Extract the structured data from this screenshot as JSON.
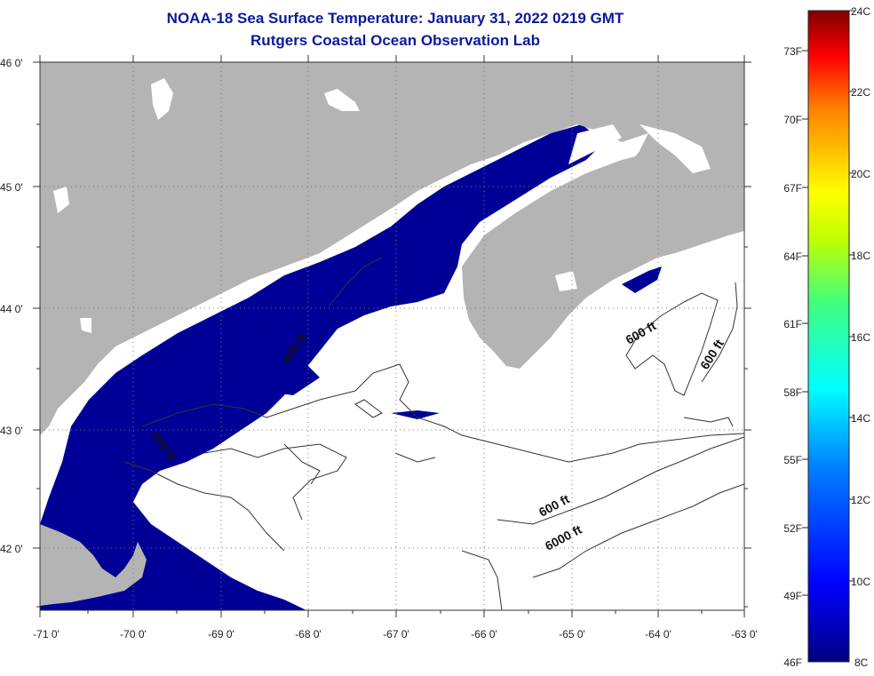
{
  "title_line1": "NOAA-18 Sea Surface Temperature:  January 31, 2022 0219 GMT",
  "title_line2": "Rutgers Coastal Ocean Observation Lab",
  "map": {
    "lat_labels": [
      "46 0'",
      "45 0'",
      "44 0'",
      "43 0'",
      "42 0'"
    ],
    "lon_labels": [
      "-71 0'",
      "-70 0'",
      "-69 0'",
      "-68 0'",
      "-67 0'",
      "-66 0'",
      "-65 0'",
      "-64 0'",
      "-63 0'"
    ],
    "contour_labels": [
      "600 ft",
      "600 ft",
      "600 ft",
      "600 ft",
      "600 ft",
      "6000 ft"
    ]
  },
  "colorbar": {
    "fahrenheit_labels": [
      "73F",
      "70F",
      "67F",
      "64F",
      "61F",
      "58F",
      "55F",
      "52F",
      "49F",
      "46F"
    ],
    "celsius_labels": [
      "24C",
      "22C",
      "20C",
      "18C",
      "16C",
      "14C",
      "12C",
      "10C",
      "8C"
    ]
  },
  "colors": {
    "title": "#0a1a9c",
    "land": "#b4b4b4",
    "cold_water": "#000096",
    "no_data": "#ffffff"
  }
}
